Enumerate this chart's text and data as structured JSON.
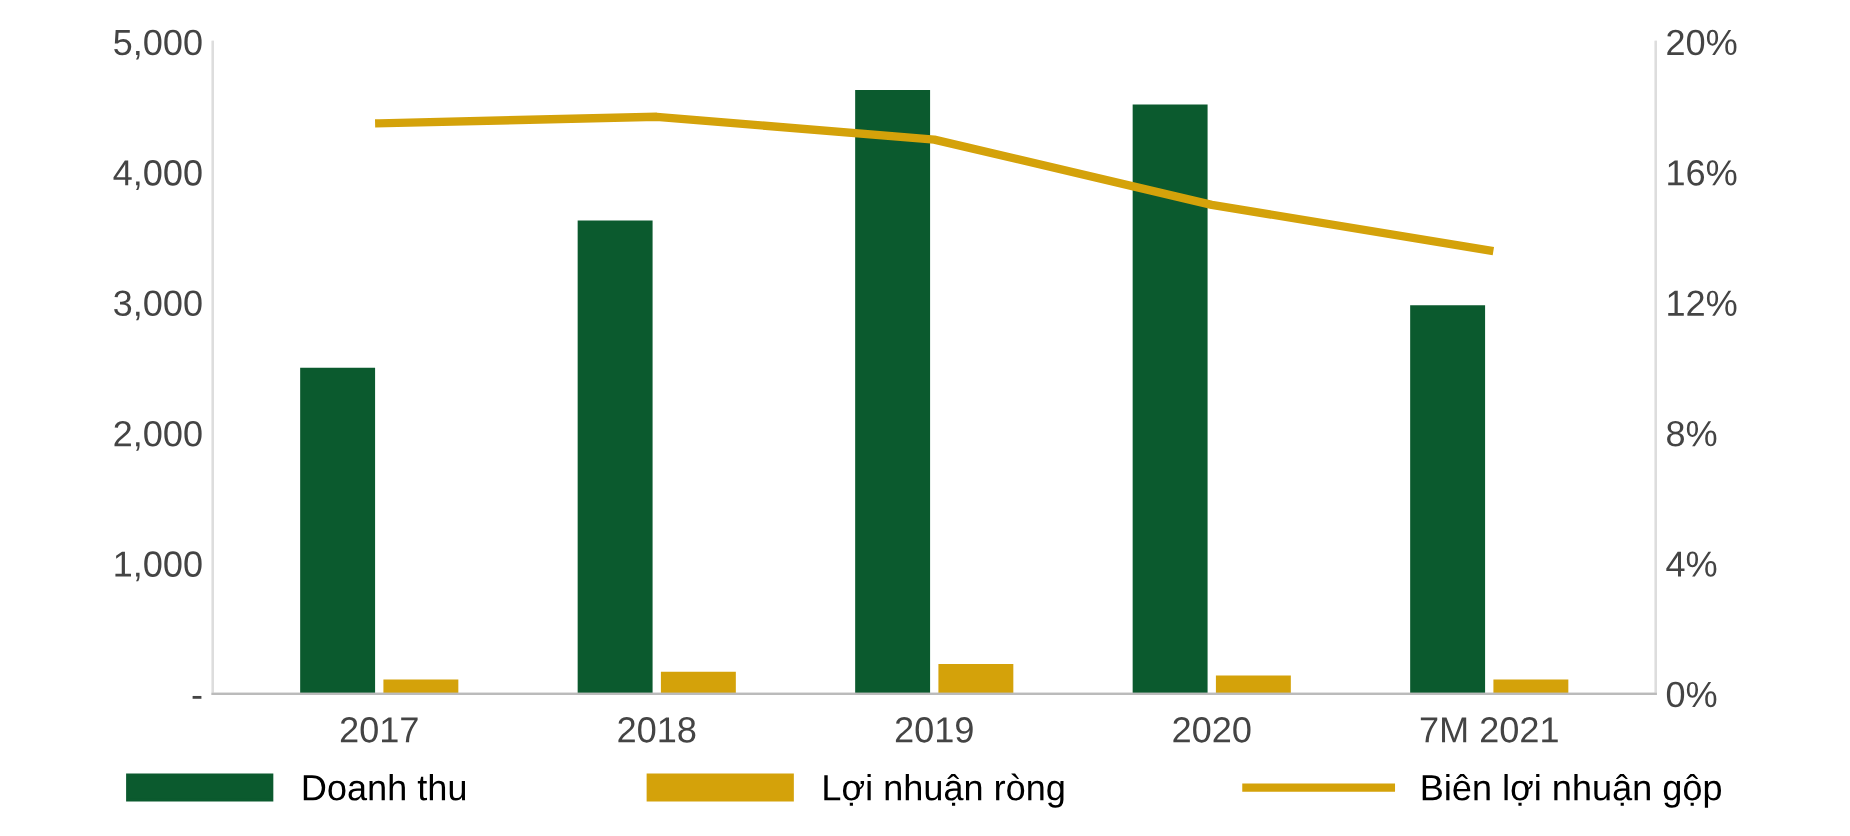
{
  "chart_data": {
    "type": "bar",
    "categories": [
      "2017",
      "2018",
      "2019",
      "2020",
      "7M 2021"
    ],
    "series": [
      {
        "name": "Doanh thu",
        "color": "#0b5a2e",
        "values": [
          2500,
          3630,
          4630,
          4520,
          2980
        ]
      },
      {
        "name": "Lợi nhuận ròng",
        "color": "#d4a20a",
        "values": [
          110,
          170,
          230,
          140,
          110
        ]
      },
      {
        "name": "Biên lợi nhuận gộp",
        "type": "line",
        "axis": "y2",
        "color": "#d4a20a",
        "values": [
          17.5,
          17.7,
          17.0,
          15.0,
          13.6
        ]
      }
    ],
    "ylim": [
      0,
      5000
    ],
    "yticks": [
      {
        "value": 0,
        "label": "-"
      },
      {
        "value": 1000,
        "label": "1,000"
      },
      {
        "value": 2000,
        "label": "2,000"
      },
      {
        "value": 3000,
        "label": "3,000"
      },
      {
        "value": 4000,
        "label": "4,000"
      },
      {
        "value": 5000,
        "label": "5,000"
      }
    ],
    "y2lim": [
      0,
      20
    ],
    "y2ticks": [
      {
        "value": 0,
        "label": "0%"
      },
      {
        "value": 4,
        "label": "4%"
      },
      {
        "value": 8,
        "label": "8%"
      },
      {
        "value": 12,
        "label": "12%"
      },
      {
        "value": 16,
        "label": "16%"
      },
      {
        "value": 20,
        "label": "20%"
      }
    ],
    "grid": false,
    "legend": "bottom",
    "marker": "none",
    "line_style": "solid"
  }
}
